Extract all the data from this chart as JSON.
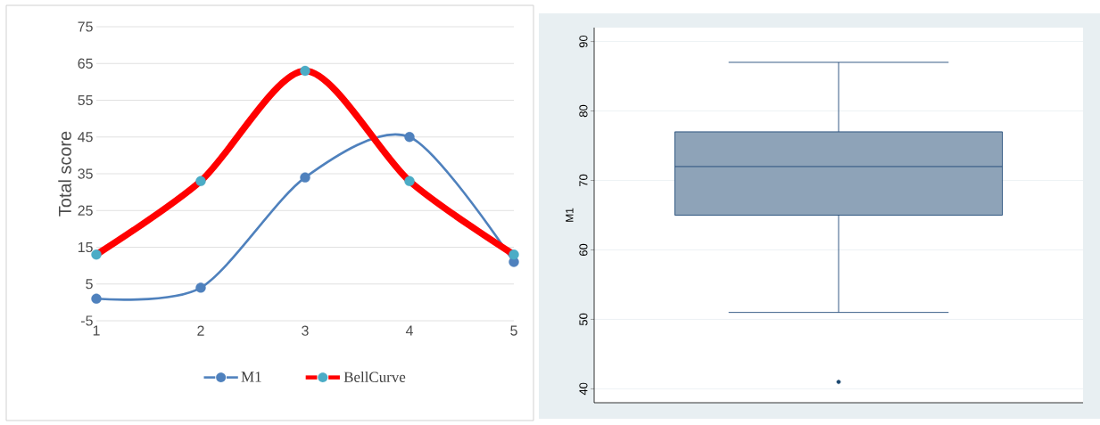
{
  "chart_data": [
    {
      "type": "line",
      "x": [
        1,
        2,
        3,
        4,
        5
      ],
      "xlim": [
        1,
        5
      ],
      "xticks": [
        1,
        2,
        3,
        4,
        5
      ],
      "ylim": [
        -5,
        75
      ],
      "yticks": [
        -5,
        5,
        15,
        25,
        35,
        45,
        55,
        65,
        75
      ],
      "ylabel": "Total score",
      "grid": "y",
      "legend": "bottom",
      "marker": "circle",
      "line_style": "solid",
      "series": [
        {
          "name": "M1",
          "color": "#4f81bd",
          "values": [
            1,
            4,
            34,
            45,
            11
          ]
        },
        {
          "name": "BellCurve",
          "color": "#ff0000",
          "colors": [
            "#4bacc6",
            "#4bacc6",
            "#4bacc6",
            "#4bacc6",
            "#4bacc6"
          ],
          "values": [
            13,
            33,
            63,
            33,
            13
          ]
        }
      ]
    },
    {
      "type": "box",
      "categories": [
        null
      ],
      "ylabel": "M1",
      "ylim": [
        38,
        92
      ],
      "yticks": [
        40,
        50,
        60,
        70,
        80,
        90
      ],
      "grid": "y",
      "tick_labels": "y",
      "color": "#8ea3b8",
      "boxes": [
        {
          "low": 51,
          "q1": 65,
          "median": 72,
          "q3": 77,
          "high": 87,
          "outliers": [
            41
          ]
        }
      ]
    }
  ]
}
